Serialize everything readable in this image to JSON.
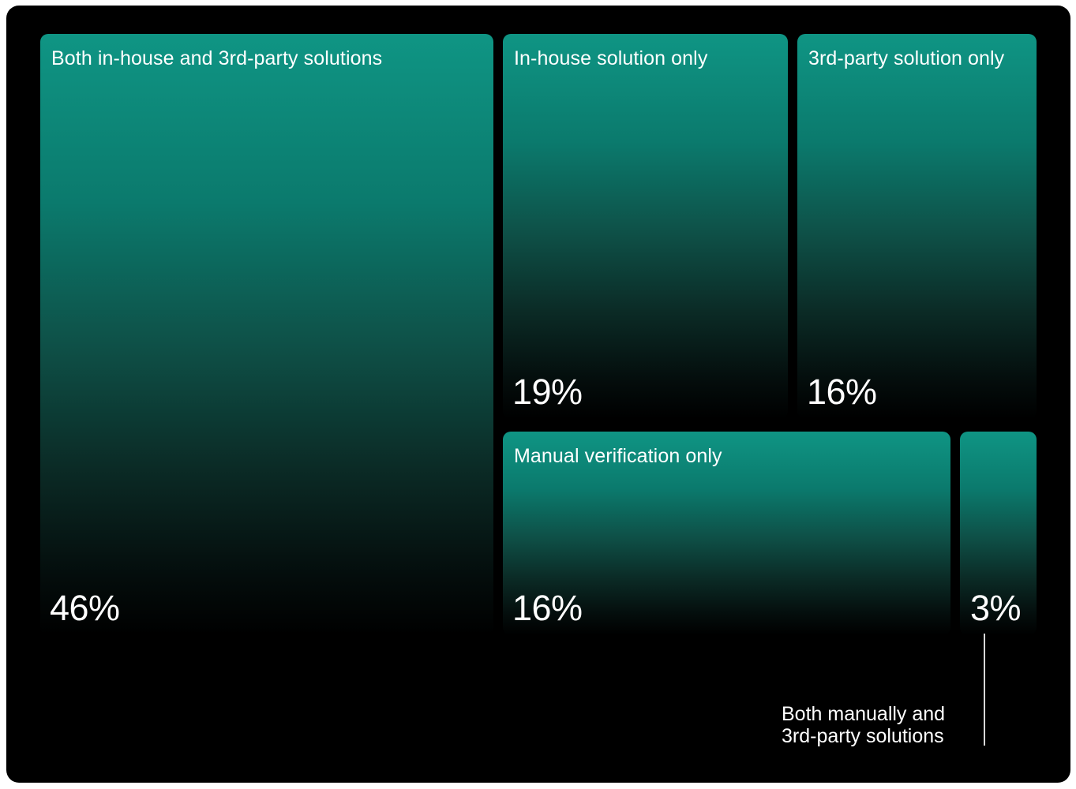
{
  "chart_data": {
    "type": "treemap",
    "items": [
      {
        "label": "Both in-house and 3rd-party solutions",
        "value": 46,
        "value_label": "46%",
        "color": "#0f9584"
      },
      {
        "label": "In-house solution only",
        "value": 19,
        "value_label": "19%",
        "color": "#0f9584"
      },
      {
        "label": "3rd-party solution only",
        "value": 16,
        "value_label": "16%",
        "color": "#0f9584"
      },
      {
        "label": "Manual verification only",
        "value": 16,
        "value_label": "16%",
        "color": "#0f9584"
      },
      {
        "label": "Both manually and 3rd-party solutions",
        "value": 3,
        "value_label": "3%",
        "color": "#0f9584"
      }
    ],
    "callout": {
      "line1": "Both manually and",
      "line2": "3rd-party solutions"
    },
    "background": "#000000",
    "text_color": "#ffffff"
  }
}
